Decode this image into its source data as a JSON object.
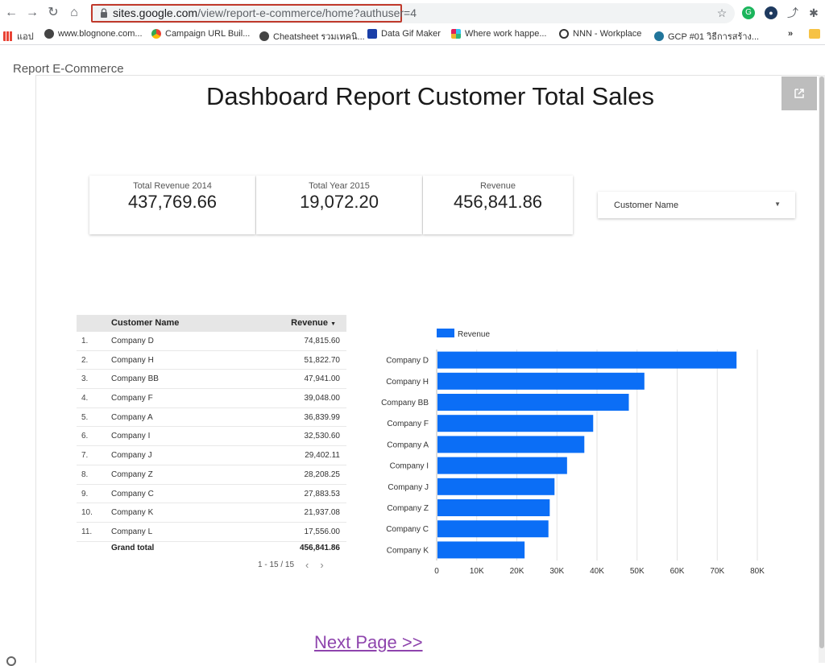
{
  "browser": {
    "url_host": "sites.google.com",
    "url_path": "/view/report-e-commerce/home?authuser=4",
    "bookmarks": [
      {
        "label": "แอป",
        "icon": "apps-grid-icon"
      },
      {
        "label": "www.blognone.com...",
        "icon": "globe-icon"
      },
      {
        "label": "Campaign URL Buil...",
        "icon": "campaign-icon"
      },
      {
        "label": "Cheatsheet รวมเทคนิ...",
        "icon": "globe-icon"
      },
      {
        "label": "Data Gif Maker",
        "icon": "video-icon"
      },
      {
        "label": "Where work happe...",
        "icon": "slack-icon"
      },
      {
        "label": "NNN - Workplace",
        "icon": "workplace-icon"
      },
      {
        "label": "GCP #01 วิธีการสร้าง...",
        "icon": "wordpress-icon"
      }
    ],
    "more_label": "»"
  },
  "site": {
    "title": "Report E-Commerce"
  },
  "dashboard": {
    "title": "Dashboard Report Customer Total Sales",
    "kpis": [
      {
        "label": "Total Revenue 2014",
        "value": "437,769.66"
      },
      {
        "label": "Total Year 2015",
        "value": "19,072.20"
      },
      {
        "label": "Revenue",
        "value": "456,841.86"
      }
    ],
    "filter": {
      "label": "Customer Name"
    }
  },
  "table": {
    "col_name": "Customer Name",
    "col_revenue": "Revenue",
    "rows": [
      {
        "idx": "1.",
        "name": "Company D",
        "revenue": "74,815.60"
      },
      {
        "idx": "2.",
        "name": "Company H",
        "revenue": "51,822.70"
      },
      {
        "idx": "3.",
        "name": "Company BB",
        "revenue": "47,941.00"
      },
      {
        "idx": "4.",
        "name": "Company F",
        "revenue": "39,048.00"
      },
      {
        "idx": "5.",
        "name": "Company A",
        "revenue": "36,839.99"
      },
      {
        "idx": "6.",
        "name": "Company I",
        "revenue": "32,530.60"
      },
      {
        "idx": "7.",
        "name": "Company J",
        "revenue": "29,402.11"
      },
      {
        "idx": "8.",
        "name": "Company Z",
        "revenue": "28,208.25"
      },
      {
        "idx": "9.",
        "name": "Company C",
        "revenue": "27,883.53"
      },
      {
        "idx": "10.",
        "name": "Company K",
        "revenue": "21,937.08"
      },
      {
        "idx": "11.",
        "name": "Company L",
        "revenue": "17,556.00"
      }
    ],
    "total_label": "Grand total",
    "total_value": "456,841.86",
    "pager": "1 - 15 / 15"
  },
  "chart_data": {
    "type": "bar",
    "orientation": "horizontal",
    "categories": [
      "Company D",
      "Company H",
      "Company BB",
      "Company F",
      "Company A",
      "Company I",
      "Company J",
      "Company Z",
      "Company C",
      "Company K"
    ],
    "series": [
      {
        "name": "Revenue",
        "values": [
          74815.6,
          51822.7,
          47941.0,
          39048.0,
          36839.99,
          32530.6,
          29402.11,
          28208.25,
          27883.53,
          21937.08
        ]
      }
    ],
    "xlim": [
      0,
      80000
    ],
    "xticks": [
      "0",
      "10K",
      "20K",
      "30K",
      "40K",
      "50K",
      "60K",
      "70K",
      "80K"
    ],
    "grid": true,
    "legend": "top-left",
    "color": "#0b6ef6"
  },
  "next_link": "Next Page >>"
}
